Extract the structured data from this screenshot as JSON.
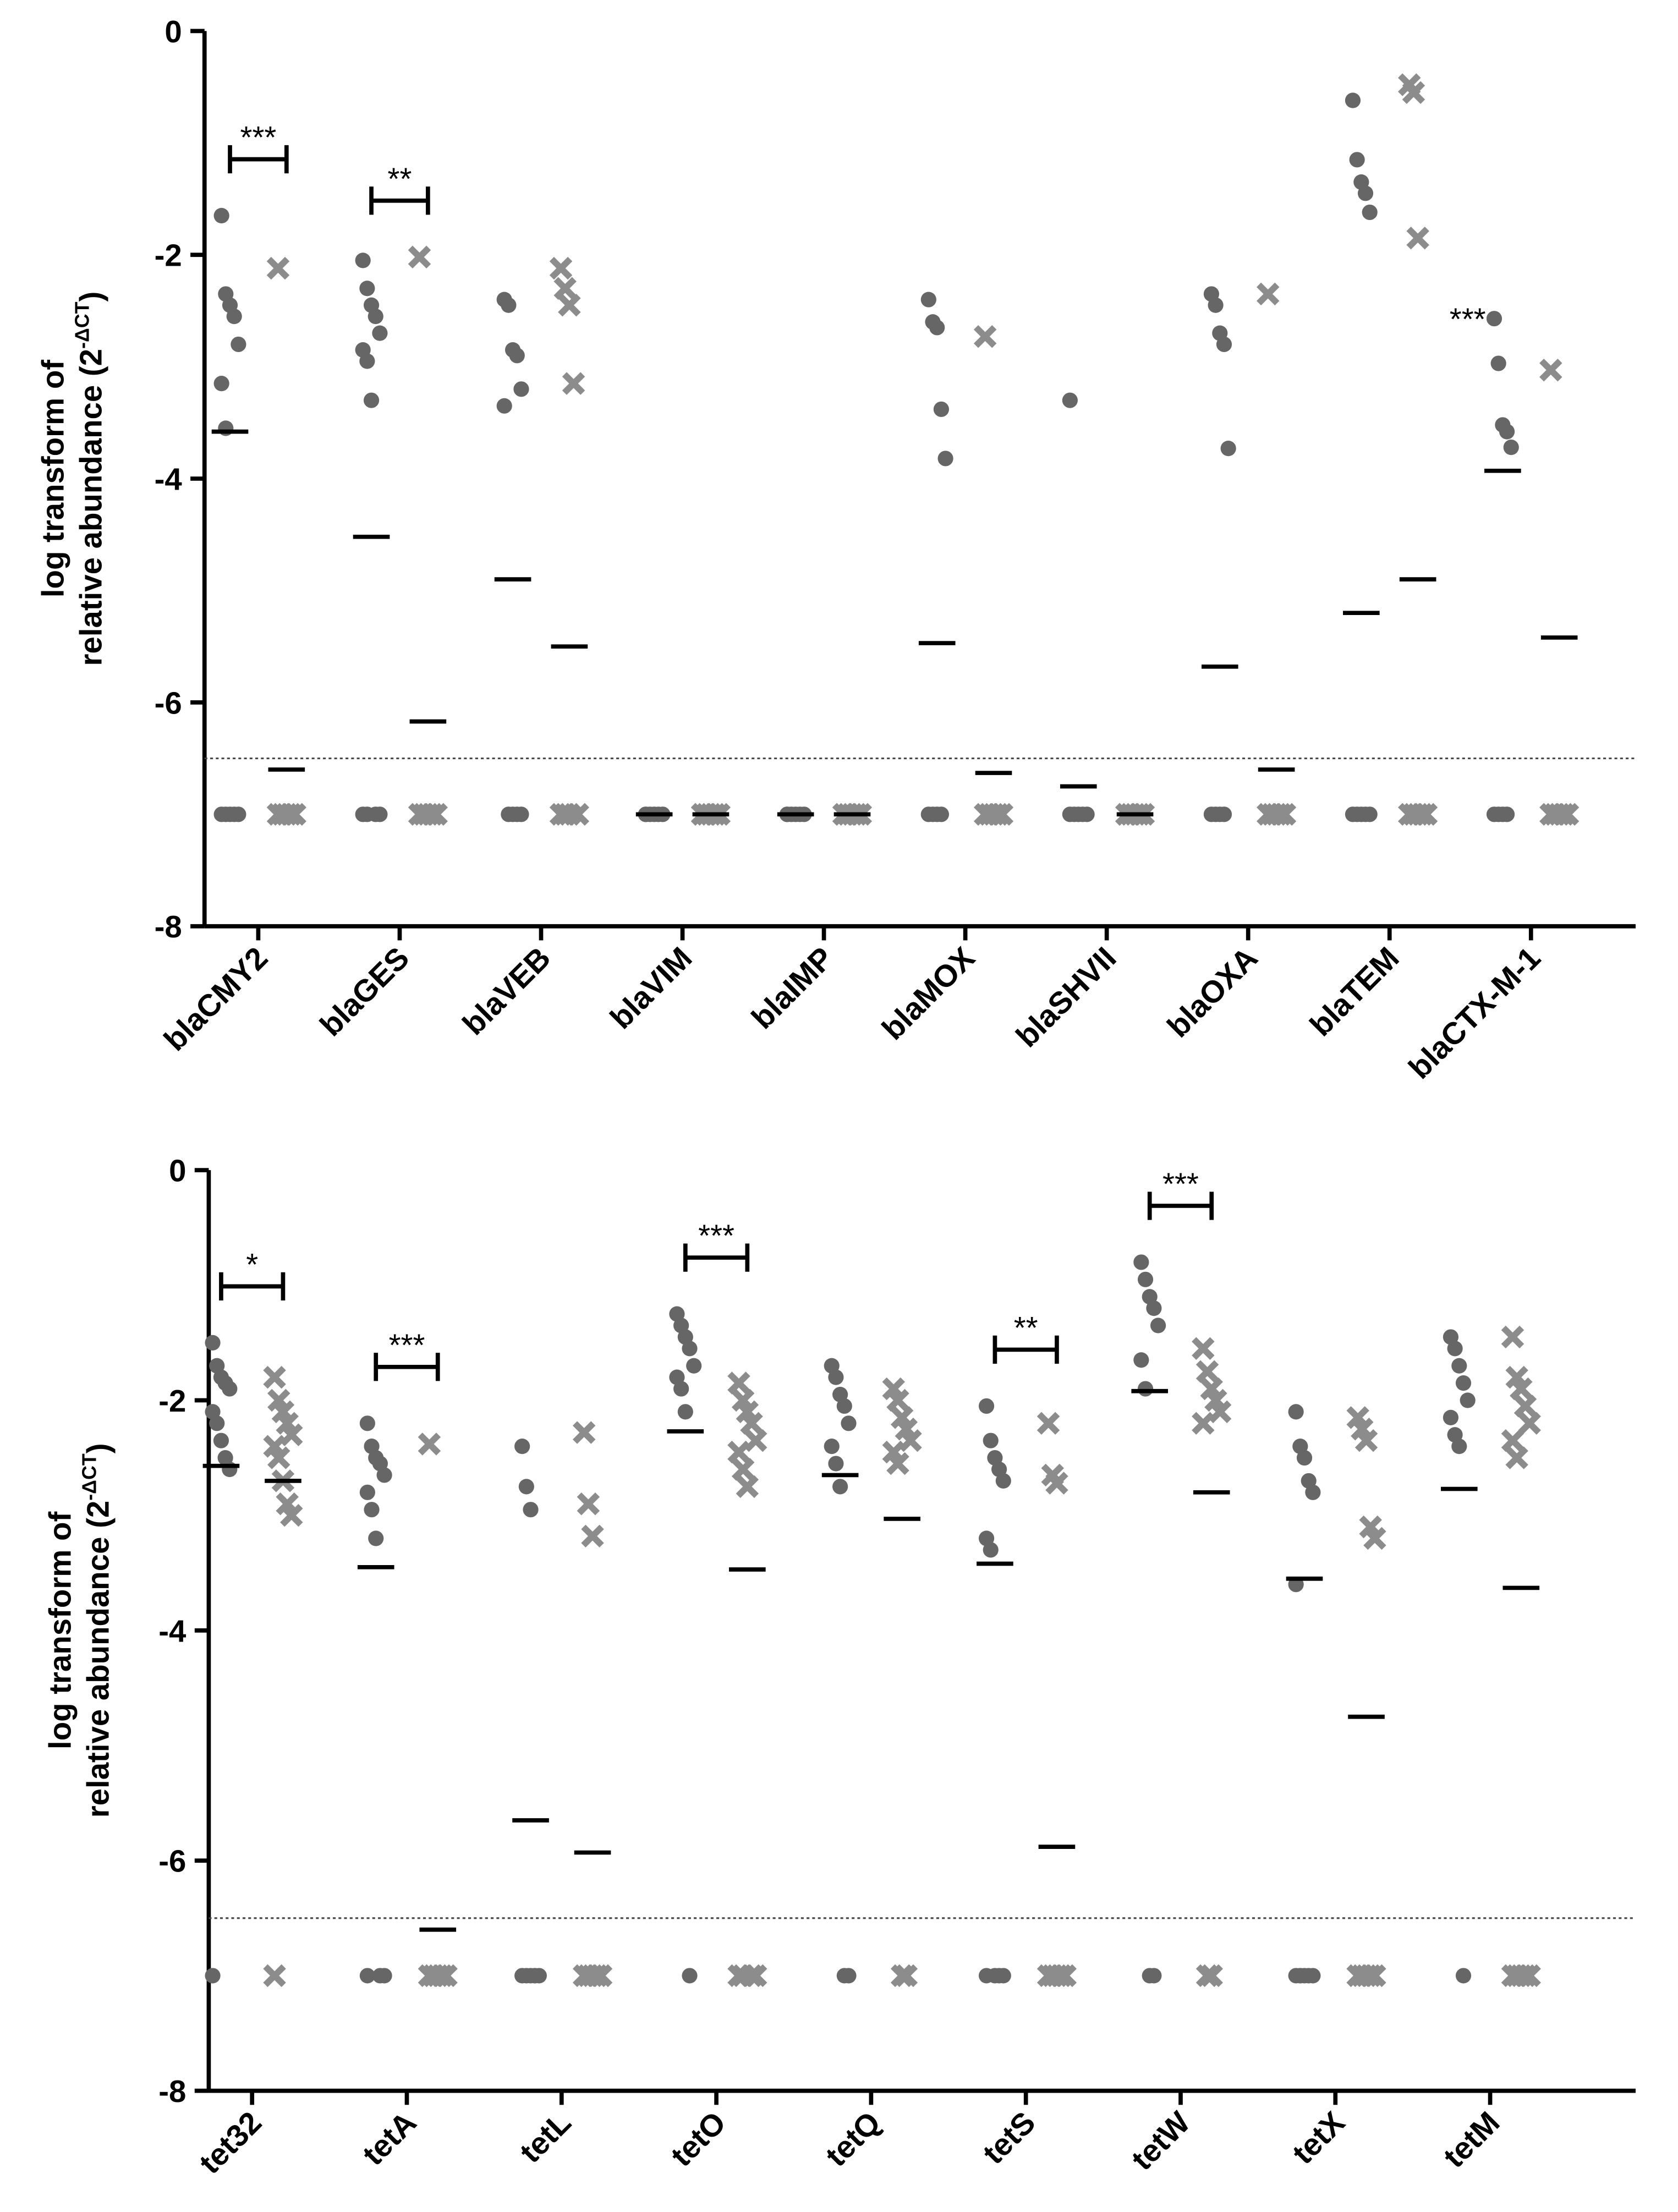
{
  "chart_data": [
    {
      "type": "dot",
      "ylabel": {
        "line1": "log transform of",
        "line2": "relative abundance (2",
        "sup": "-ΔCT",
        "end": ")"
      },
      "categories": [
        "blaCMY2",
        "blaGES",
        "blaVEB",
        "blaVIM",
        "blaIMP",
        "blaMOX",
        "blaSHVII",
        "blaOXA",
        "blaTEM",
        "blaCTX-M-1"
      ],
      "ylim": [
        -8,
        0
      ],
      "yticks": [
        0,
        -2,
        -4,
        -6,
        -8
      ],
      "threshold": -6.5,
      "series": [
        {
          "marker": "circle",
          "color": "#666666",
          "values": [
            [
              -1.65,
              -2.35,
              -2.45,
              -2.55,
              -2.8,
              -3.15,
              -3.55,
              -7,
              -7,
              -7,
              -7,
              -7
            ],
            [
              -2.05,
              -2.3,
              -2.45,
              -2.55,
              -2.7,
              -2.85,
              -2.95,
              -3.3,
              -7,
              -7,
              -7,
              -7
            ],
            [
              -2.4,
              -2.45,
              -2.85,
              -2.9,
              -3.2,
              -3.35,
              -7,
              -7,
              -7,
              -7
            ],
            [
              -7,
              -7,
              -7,
              -7,
              -7,
              -7
            ],
            [
              -7,
              -7,
              -7,
              -7,
              -7,
              -7
            ],
            [
              -2.4,
              -2.6,
              -2.65,
              -3.38,
              -3.82,
              -7,
              -7,
              -7,
              -7
            ],
            [
              -3.3,
              -7,
              -7,
              -7,
              -7,
              -7
            ],
            [
              -2.35,
              -2.45,
              -2.7,
              -2.8,
              -3.73,
              -7,
              -7,
              -7,
              -7
            ],
            [
              -0.62,
              -1.15,
              -1.35,
              -1.45,
              -1.62,
              -7,
              -7,
              -7,
              -7,
              -7
            ],
            [
              -2.57,
              -2.97,
              -3.52,
              -3.58,
              -3.72,
              -7,
              -7,
              -7,
              -7
            ]
          ],
          "means": [
            -3.58,
            -4.52,
            -4.9,
            -7,
            -7,
            -5.47,
            -6.75,
            -5.68,
            -5.2,
            -3.93
          ]
        },
        {
          "marker": "cross",
          "color": "#8c8c8c",
          "values": [
            [
              -2.12,
              -7,
              -7,
              -7,
              -7,
              -7
            ],
            [
              -2.02,
              -7,
              -7,
              -7,
              -7,
              -7
            ],
            [
              -2.12,
              -2.3,
              -2.45,
              -3.15,
              -7,
              -7,
              -7,
              -7
            ],
            [
              -7,
              -7,
              -7,
              -7,
              -7,
              -7
            ],
            [
              -7,
              -7,
              -7,
              -7,
              -7,
              -7
            ],
            [
              -2.73,
              -7,
              -7,
              -7,
              -7,
              -7
            ],
            [
              -7,
              -7,
              -7,
              -7,
              -7,
              -7
            ],
            [
              -2.35,
              -7,
              -7,
              -7,
              -7,
              -7
            ],
            [
              -0.48,
              -0.55,
              -1.85,
              -7,
              -7,
              -7,
              -7,
              -7
            ],
            [
              -3.03,
              -7,
              -7,
              -7,
              -7,
              -7
            ]
          ],
          "means": [
            -6.6,
            -6.17,
            -5.5,
            -7,
            -7,
            -6.63,
            -7,
            -6.6,
            -4.9,
            -5.42
          ]
        }
      ],
      "annotations": [
        {
          "text": "***",
          "category": 0,
          "bracket": true
        },
        {
          "text": "**",
          "category": 1,
          "bracket": true
        },
        {
          "text": "***",
          "category": 9,
          "bracket": false
        }
      ]
    },
    {
      "type": "dot",
      "ylabel": {
        "line1": "log transform of",
        "line2": "relative abundance (2",
        "sup": "-ΔCT",
        "end": ")"
      },
      "categories": [
        "tet32",
        "tetA",
        "tetL",
        "tetO",
        "tetQ",
        "tetS",
        "tetW",
        "tetX",
        "tetM"
      ],
      "ylim": [
        -8,
        0
      ],
      "yticks": [
        0,
        -2,
        -4,
        -6,
        -8
      ],
      "threshold": -6.5,
      "series": [
        {
          "marker": "circle",
          "color": "#666666",
          "values": [
            [
              -1.5,
              -1.7,
              -1.8,
              -1.85,
              -1.9,
              -2.1,
              -2.2,
              -2.35,
              -2.5,
              -2.6,
              -7
            ],
            [
              -2.2,
              -2.4,
              -2.5,
              -2.55,
              -2.65,
              -2.8,
              -2.95,
              -3.2,
              -7,
              -7,
              -7
            ],
            [
              -2.4,
              -2.75,
              -2.95,
              -7,
              -7,
              -7,
              -7,
              -7,
              -7
            ],
            [
              -1.25,
              -1.35,
              -1.45,
              -1.55,
              -1.7,
              -1.8,
              -1.9,
              -2.1,
              -7
            ],
            [
              -1.7,
              -1.8,
              -1.95,
              -2.05,
              -2.2,
              -2.4,
              -2.55,
              -2.75,
              -7,
              -7
            ],
            [
              -2.05,
              -2.35,
              -2.5,
              -2.6,
              -2.7,
              -3.2,
              -3.3,
              -7,
              -7,
              -7,
              -7
            ],
            [
              -0.8,
              -0.95,
              -1.1,
              -1.2,
              -1.35,
              -1.65,
              -1.9,
              -7,
              -7
            ],
            [
              -2.1,
              -2.4,
              -2.5,
              -2.7,
              -2.8,
              -3.6,
              -7,
              -7,
              -7,
              -7,
              -7,
              -7
            ],
            [
              -1.45,
              -1.55,
              -1.7,
              -1.85,
              -2.0,
              -2.15,
              -2.3,
              -2.4,
              -7
            ]
          ],
          "means": [
            -2.57,
            -3.45,
            -5.65,
            -2.27,
            -2.65,
            -3.42,
            -1.92,
            -3.55,
            -2.77
          ]
        },
        {
          "marker": "cross",
          "color": "#8c8c8c",
          "values": [
            [
              -1.8,
              -2.0,
              -2.1,
              -2.2,
              -2.3,
              -2.4,
              -2.5,
              -2.7,
              -2.9,
              -3.0,
              -7
            ],
            [
              -2.38,
              -7,
              -7,
              -7,
              -7,
              -7,
              -7
            ],
            [
              -2.28,
              -2.9,
              -3.18,
              -7,
              -7,
              -7,
              -7,
              -7,
              -7,
              -7
            ],
            [
              -1.85,
              -2.0,
              -2.1,
              -2.2,
              -2.35,
              -2.45,
              -2.6,
              -2.75,
              -7,
              -7,
              -7,
              -7
            ],
            [
              -1.9,
              -2.0,
              -2.15,
              -2.25,
              -2.35,
              -2.45,
              -2.55,
              -7,
              -7
            ],
            [
              -2.2,
              -2.65,
              -2.72,
              -7,
              -7,
              -7,
              -7,
              -7,
              -7
            ],
            [
              -1.55,
              -1.75,
              -1.9,
              -2.0,
              -2.1,
              -2.2,
              -7,
              -7
            ],
            [
              -2.15,
              -2.25,
              -2.35,
              -3.1,
              -3.2,
              -7,
              -7,
              -7,
              -7,
              -7,
              -7
            ],
            [
              -1.45,
              -1.8,
              -1.9,
              -2.05,
              -2.2,
              -2.35,
              -2.5,
              -7,
              -7,
              -7,
              -7,
              -7
            ]
          ],
          "means": [
            -2.7,
            -6.6,
            -5.93,
            -3.47,
            -3.03,
            -5.88,
            -2.8,
            -4.75,
            -3.63
          ]
        }
      ],
      "annotations": [
        {
          "text": "*",
          "category": 0,
          "bracket": true
        },
        {
          "text": "***",
          "category": 1,
          "bracket": true
        },
        {
          "text": "***",
          "category": 3,
          "bracket": true
        },
        {
          "text": "**",
          "category": 5,
          "bracket": true
        },
        {
          "text": "***",
          "category": 6,
          "bracket": true
        }
      ]
    }
  ]
}
